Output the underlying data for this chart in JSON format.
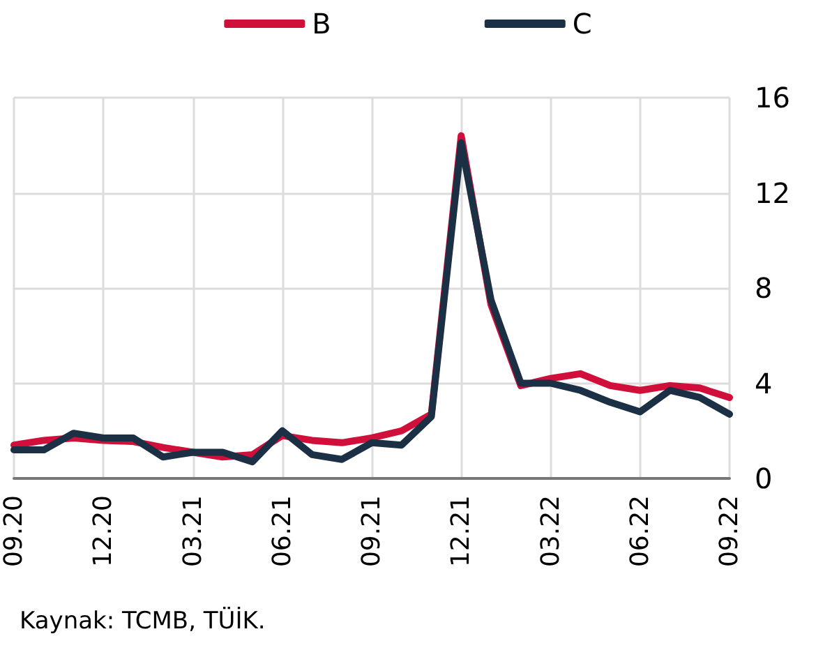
{
  "chart_data": {
    "type": "line",
    "categories": [
      "09.20",
      null,
      null,
      "12.20",
      null,
      null,
      "03.21",
      null,
      null,
      "06.21",
      null,
      null,
      "09.21",
      null,
      null,
      "12.21",
      null,
      null,
      "03.22",
      null,
      null,
      "06.22",
      null,
      null,
      "09.22"
    ],
    "series": [
      {
        "name": "B",
        "color": "#d0103a",
        "values": [
          1.4,
          1.6,
          1.7,
          1.6,
          1.55,
          1.3,
          1.1,
          0.9,
          1.0,
          1.8,
          1.6,
          1.5,
          1.7,
          2.0,
          2.7,
          14.4,
          7.3,
          3.9,
          4.2,
          4.4,
          3.9,
          3.7,
          3.9,
          3.8,
          3.4
        ]
      },
      {
        "name": "C",
        "color": "#1b2f45",
        "values": [
          1.2,
          1.2,
          1.9,
          1.7,
          1.7,
          0.9,
          1.1,
          1.1,
          0.7,
          2.0,
          1.0,
          0.8,
          1.5,
          1.4,
          2.6,
          14.1,
          7.5,
          4.0,
          4.0,
          3.7,
          3.2,
          2.8,
          3.7,
          3.4,
          2.7
        ]
      }
    ],
    "ylim": [
      0,
      16
    ],
    "yticks": [
      0,
      4,
      8,
      12,
      16
    ],
    "grid": true,
    "legend": "top",
    "marker": "none",
    "line_style": "solid",
    "annotations": [
      "Kaynak: TCMB, TÜİK."
    ]
  }
}
